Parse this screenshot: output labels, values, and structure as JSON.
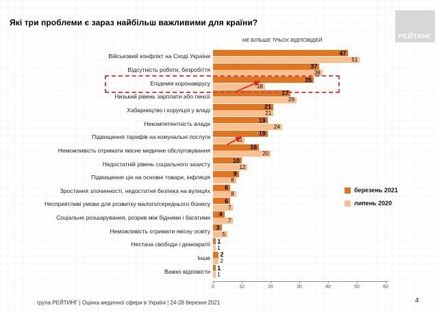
{
  "header": {
    "title": "Які три проблеми є зараз найбільш важливими для країни?",
    "note": "НЕ БІЛЬШЕ ТРЬОХ ВІДПОВІДЕЙ",
    "logo_text": "РЕЙТИНГ"
  },
  "legend": {
    "items": [
      {
        "label": "березень 2021",
        "color": "#e2741e"
      },
      {
        "label": "липень 2020",
        "color": "#fabf8f"
      }
    ]
  },
  "footer": {
    "source_line": "група РЕЙТИНГ  |  Оцінка медичної сфери в Україні  | 24-28 березня 2021",
    "page_number": "4"
  },
  "chart_data": {
    "type": "bar",
    "orientation": "horizontal",
    "title": "Які три проблеми є зараз найбільш важливими для країни?",
    "subtitle": "НЕ БІЛЬШЕ ТРЬОХ ВІДПОВІДЕЙ",
    "categories": [
      "Військовий конфлікт на Сході України",
      "Відсутність роботи, безробіття",
      "Епідемія коронавірусу",
      "Низький рівень зарплати або пенсії",
      "Хабарництво і корупція у владі",
      "Некомпетентність влади",
      "Підвищення тарифів на комунальні послуги",
      "Неможливість отримати якісне медичне обслуговування",
      "Недостатній рівень соціального захисту",
      "Підвищення цін на основні товари, інфляція",
      "Зростання злочинності, недостатня безпека на вулицях",
      "Несприятливі умови для розвитку малого/середнього бізнесу",
      "Соціальне розшарування, розрив між бідними і багатими",
      "Неможливість отримати якісну освіту",
      "Нестача свободи і демократії",
      "Інше",
      "Важко відповісти"
    ],
    "series": [
      {
        "name": "березень 2021",
        "color": "#e2741e",
        "values": [
          47,
          37,
          35,
          27,
          21,
          19,
          19,
          16,
          10,
          9,
          6,
          6,
          4,
          3,
          1,
          2,
          1
        ]
      },
      {
        "name": "липень 2020",
        "color": "#fabf8f",
        "values": [
          51,
          38,
          18,
          29,
          21,
          24,
          11,
          20,
          12,
          8,
          8,
          7,
          7,
          5,
          1,
          2,
          1
        ]
      }
    ],
    "xlim": [
      0,
      60
    ],
    "x_ticks": [
      0,
      10,
      20,
      30,
      40,
      50,
      60
    ],
    "grid": true,
    "legend_position": "right-middle",
    "highlight": {
      "category": "Епідемія коронавірусу",
      "style": "red-dashed-box"
    },
    "annotations": [
      {
        "type": "arrow",
        "color": "#e02020",
        "target": "Епідемія коронавірусу — березень 2021 (35)"
      },
      {
        "type": "arrow",
        "color": "#e02020",
        "target": "Підвищення тарифів на комунальні послуги — березень 2021 (19)"
      }
    ]
  }
}
